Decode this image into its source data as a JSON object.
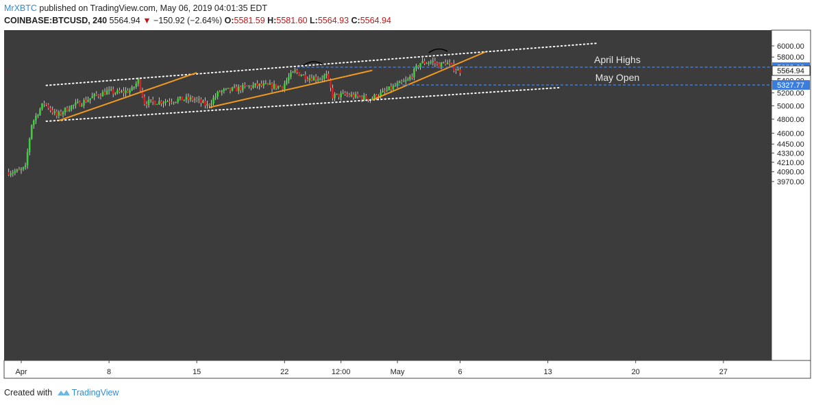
{
  "header": {
    "author": "MrXBTC",
    "published_text": "published on TradingView.com, May 06, 2019 04:01:35 EDT",
    "symbol": "COINBASE:BTCUSD, 240",
    "last": "5564.94",
    "change": "−150.92 (−2.64%)",
    "o_label": "O:",
    "o_value": "5581.59",
    "h_label": "H:",
    "h_value": "5581.60",
    "l_label": "L:",
    "l_value": "5564.93",
    "c_label": "C:",
    "c_value": "5564.94"
  },
  "footer": {
    "created_with": "Created with",
    "brand": "TradingView"
  },
  "colors": {
    "plot_bg": "#3c3c3c",
    "up": "#3ad13a",
    "down": "#dd1f1f",
    "trend": "#f39a1e",
    "channel": "#ffffff",
    "level": "#3b7ddd",
    "axis_text": "#222222"
  },
  "chart_data": {
    "type": "candlestick",
    "title": "",
    "xlabel": "",
    "ylabel": "",
    "y_scale": "log",
    "ylim": [
      3900,
      6100
    ],
    "xlim": [
      "2019-03-31",
      "2019-05-31"
    ],
    "y_ticks": [
      3970,
      4090,
      4210,
      4330,
      4450,
      4600,
      4800,
      5000,
      5200,
      5400,
      5600,
      5800,
      6000
    ],
    "y_tick_labels": [
      "3970.00",
      "4090.00",
      "4210.00",
      "4330.00",
      "4450.00",
      "4600.00",
      "4800.00",
      "5000.00",
      "5200.00",
      "5400.00",
      "5600.00",
      "5800.00",
      "6000.00"
    ],
    "x_ticks": [
      "2019-04-01",
      "2019-04-08",
      "2019-04-15",
      "2019-04-22",
      "2019-04-26T12:00",
      "2019-05-01",
      "2019-05-06",
      "2019-05-13",
      "2019-05-20",
      "2019-05-27"
    ],
    "x_tick_labels": [
      "Apr",
      "8",
      "15",
      "22",
      "12:00",
      "May",
      "6",
      "13",
      "20",
      "27"
    ],
    "last_price": 5564.94,
    "levels": [
      {
        "name": "April Highs",
        "value": 5623.66,
        "label": "5623.66",
        "from": "2019-04-23"
      },
      {
        "name": "May Open",
        "value": 5327.77,
        "label": "5327.77",
        "from": "2019-05-01"
      }
    ],
    "channel": [
      {
        "points": [
          [
            "2019-04-03",
            5320
          ],
          [
            "2019-05-17",
            6050
          ]
        ]
      },
      {
        "points": [
          [
            "2019-04-03",
            4770
          ],
          [
            "2019-05-14",
            5285
          ]
        ]
      }
    ],
    "trendlines": [
      {
        "points": [
          [
            "2019-04-04",
            4780
          ],
          [
            "2019-04-15",
            5530
          ]
        ]
      },
      {
        "points": [
          [
            "2019-04-16",
            4975
          ],
          [
            "2019-04-29",
            5570
          ]
        ]
      },
      {
        "points": [
          [
            "2019-04-29",
            5090
          ],
          [
            "2019-05-08",
            5890
          ]
        ]
      }
    ],
    "key_points": [
      [
        "2019-03-31",
        4085
      ],
      [
        "2019-04-01",
        4095
      ],
      [
        "2019-04-01T12:00",
        4140
      ],
      [
        "2019-04-02",
        4730
      ],
      [
        "2019-04-02T12:00",
        4900
      ],
      [
        "2019-04-03",
        5050
      ],
      [
        "2019-04-04",
        4850
      ],
      [
        "2019-04-05",
        4980
      ],
      [
        "2019-04-06",
        5050
      ],
      [
        "2019-04-07",
        5150
      ],
      [
        "2019-04-08",
        5220
      ],
      [
        "2019-04-09",
        5200
      ],
      [
        "2019-04-10",
        5250
      ],
      [
        "2019-04-10T12:00",
        5400
      ],
      [
        "2019-04-11",
        5050
      ],
      [
        "2019-04-12",
        5060
      ],
      [
        "2019-04-13",
        5080
      ],
      [
        "2019-04-14",
        5100
      ],
      [
        "2019-04-15",
        5100
      ],
      [
        "2019-04-16",
        5000
      ],
      [
        "2019-04-17",
        5220
      ],
      [
        "2019-04-18",
        5250
      ],
      [
        "2019-04-19",
        5290
      ],
      [
        "2019-04-20",
        5320
      ],
      [
        "2019-04-21",
        5310
      ],
      [
        "2019-04-22",
        5300
      ],
      [
        "2019-04-22T12:00",
        5450
      ],
      [
        "2019-04-23",
        5550
      ],
      [
        "2019-04-24",
        5450
      ],
      [
        "2019-04-25",
        5440
      ],
      [
        "2019-04-25T12:00",
        5480
      ],
      [
        "2019-04-26",
        5150
      ],
      [
        "2019-04-27",
        5170
      ],
      [
        "2019-04-28",
        5140
      ],
      [
        "2019-04-29",
        5110
      ],
      [
        "2019-04-30",
        5200
      ],
      [
        "2019-05-01",
        5310
      ],
      [
        "2019-05-02",
        5400
      ],
      [
        "2019-05-03",
        5700
      ],
      [
        "2019-05-04",
        5720
      ],
      [
        "2019-05-04T12:00",
        5650
      ],
      [
        "2019-05-05",
        5710
      ],
      [
        "2019-05-06",
        5565
      ]
    ]
  }
}
